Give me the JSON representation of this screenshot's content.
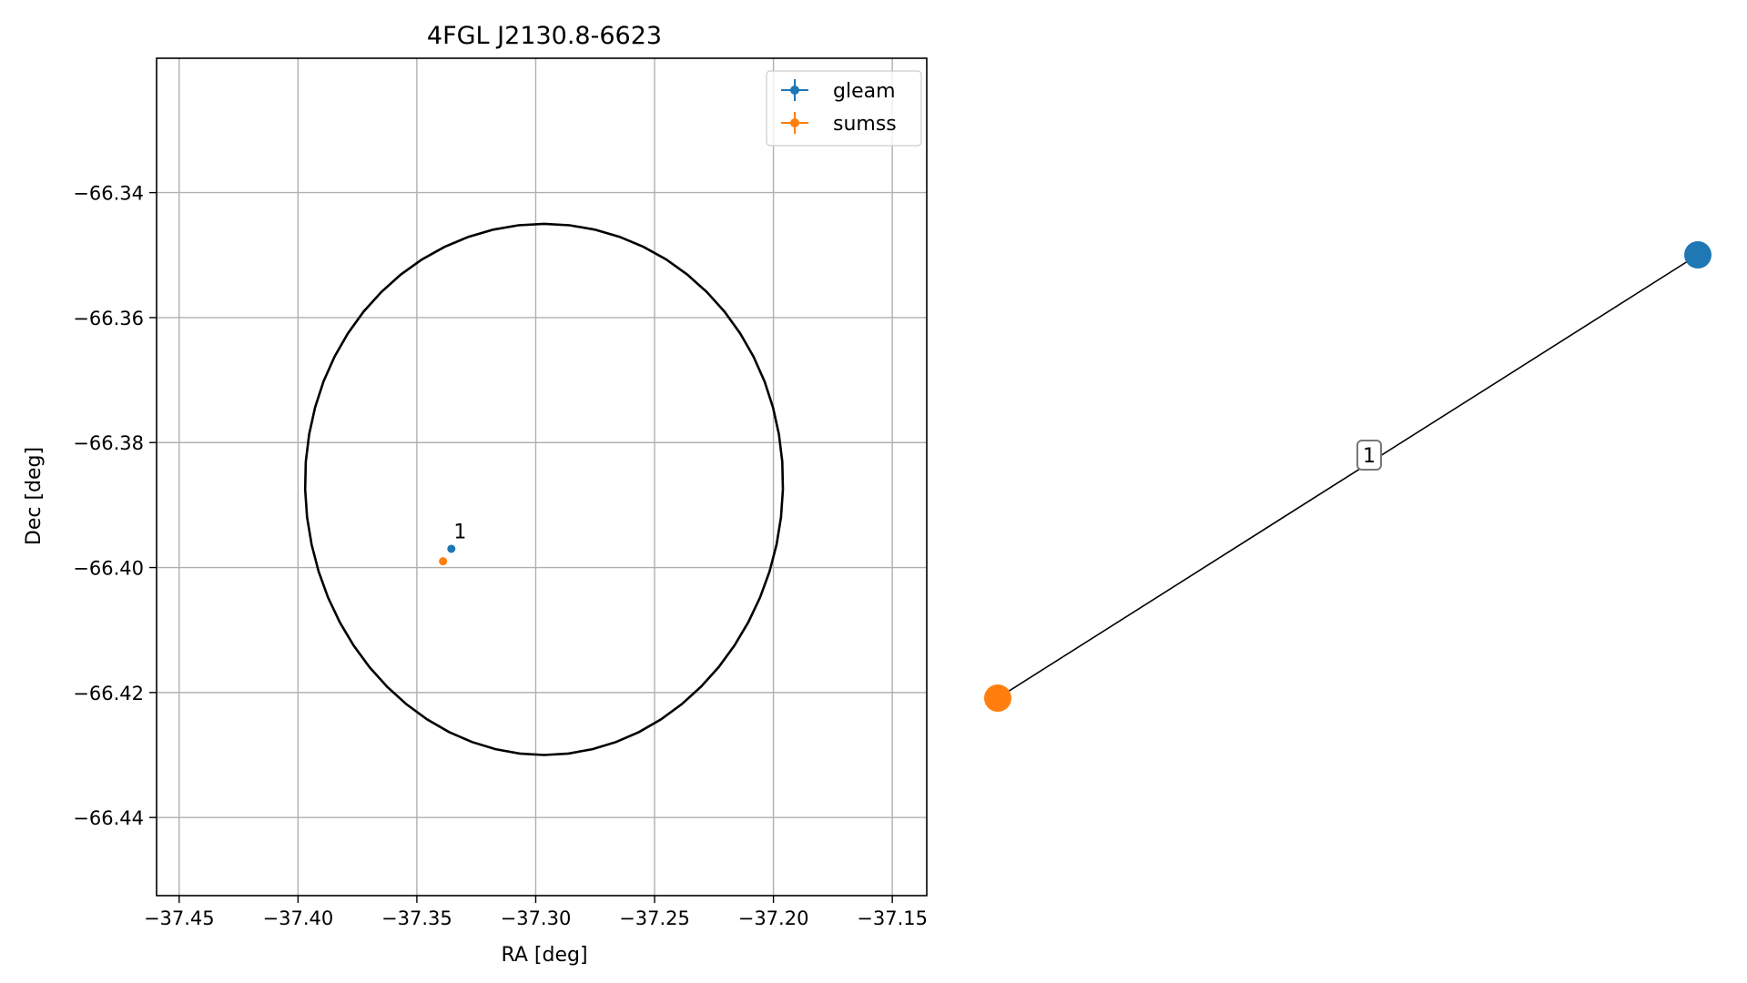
{
  "chart_data": [
    {
      "type": "scatter",
      "title": "4FGL J2130.8-6623",
      "xlabel": "RA [deg]",
      "ylabel": "Dec [deg]",
      "xlim": [
        -37.4595,
        -37.1355
      ],
      "ylim": [
        -66.4525,
        -66.3185
      ],
      "xticks": [
        -37.45,
        -37.4,
        -37.35,
        -37.3,
        -37.25,
        -37.2,
        -37.15
      ],
      "xtick_labels": [
        "−37.45",
        "−37.40",
        "−37.35",
        "−37.30",
        "−37.25",
        "−37.20",
        "−37.15"
      ],
      "yticks": [
        -66.34,
        -66.36,
        -66.38,
        -66.4,
        -66.42,
        -66.44
      ],
      "ytick_labels": [
        "−66.34",
        "−66.36",
        "−66.38",
        "−66.40",
        "−66.42",
        "−66.44"
      ],
      "grid": true,
      "legend": "top-right",
      "series": [
        {
          "name": "gleam",
          "color": "#1f77b4",
          "points": [
            {
              "x": -37.3355,
              "y": -66.397
            }
          ]
        },
        {
          "name": "sumss",
          "color": "#ff7f0e",
          "points": [
            {
              "x": -37.339,
              "y": -66.399
            }
          ]
        }
      ],
      "annotations": [
        {
          "text": "1",
          "x": -37.3345,
          "y": -66.3953
        }
      ],
      "ellipse": {
        "color": "#000000",
        "center": {
          "x": -37.2965,
          "y": -66.3875
        },
        "semi_axis_x": 0.1005,
        "semi_axis_y": 0.0425
      }
    },
    {
      "type": "network",
      "nodes": [
        {
          "id": "gleam",
          "color": "#1f77b4"
        },
        {
          "id": "sumss",
          "color": "#ff7f0e"
        }
      ],
      "edges": [
        {
          "source": "sumss",
          "target": "gleam",
          "label": "1"
        }
      ]
    }
  ]
}
